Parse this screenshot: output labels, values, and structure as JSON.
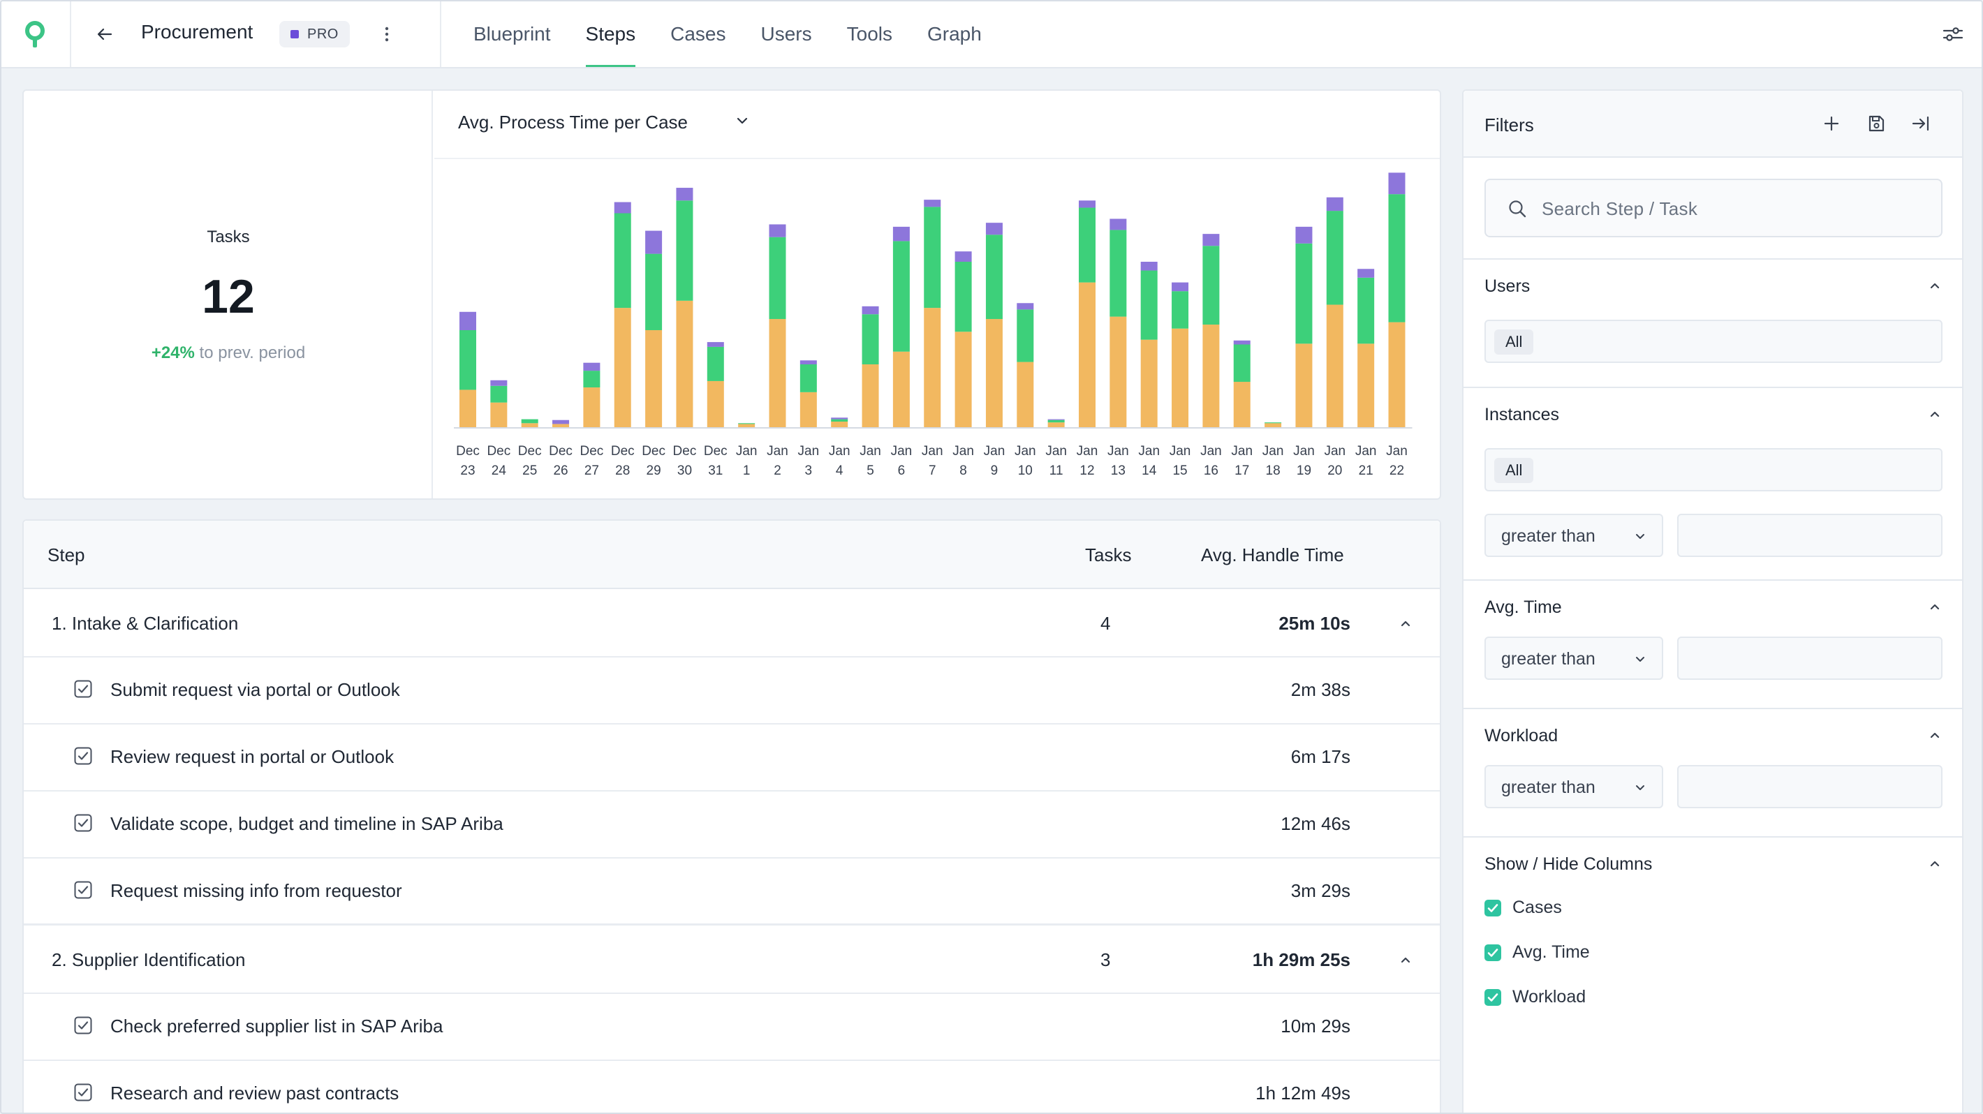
{
  "app": {
    "project_title": "Procurement",
    "plan_badge": "PRO",
    "tabs": [
      {
        "label": "Blueprint",
        "active": false
      },
      {
        "label": "Steps",
        "active": true
      },
      {
        "label": "Cases",
        "active": false
      },
      {
        "label": "Users",
        "active": false
      },
      {
        "label": "Tools",
        "active": false
      },
      {
        "label": "Graph",
        "active": false
      }
    ],
    "accent_color": "#3cc486"
  },
  "kpi": {
    "label": "Tasks",
    "value": "12",
    "delta": "+24%",
    "delta_suffix": "to prev. period"
  },
  "chart_data": {
    "type": "bar",
    "stacked": true,
    "title": "Avg. Process Time per Case",
    "categories": [
      "Dec 23",
      "Dec 24",
      "Dec 25",
      "Dec 26",
      "Dec 27",
      "Dec 28",
      "Dec 29",
      "Dec 30",
      "Dec 31",
      "Jan 1",
      "Jan 2",
      "Jan 3",
      "Jan 4",
      "Jan 5",
      "Jan 6",
      "Jan 7",
      "Jan 8",
      "Jan 9",
      "Jan 10",
      "Jan 11",
      "Jan 12",
      "Jan 13",
      "Jan 14",
      "Jan 15",
      "Jan 16",
      "Jan 17",
      "Jan 18",
      "Jan 19",
      "Jan 20",
      "Jan 21",
      "Jan 22"
    ],
    "tick_lines": [
      [
        "Dec",
        "23"
      ],
      [
        "Dec",
        "24"
      ],
      [
        "Dec",
        "25"
      ],
      [
        "Dec",
        "26"
      ],
      [
        "Dec",
        "27"
      ],
      [
        "Dec",
        "28"
      ],
      [
        "Dec",
        "29"
      ],
      [
        "Dec",
        "30"
      ],
      [
        "Dec",
        "31"
      ],
      [
        "Jan",
        "1"
      ],
      [
        "Jan",
        "2"
      ],
      [
        "Jan",
        "3"
      ],
      [
        "Jan",
        "4"
      ],
      [
        "Jan",
        "5"
      ],
      [
        "Jan",
        "6"
      ],
      [
        "Jan",
        "7"
      ],
      [
        "Jan",
        "8"
      ],
      [
        "Jan",
        "9"
      ],
      [
        "Jan",
        "10"
      ],
      [
        "Jan",
        "11"
      ],
      [
        "Jan",
        "12"
      ],
      [
        "Jan",
        "13"
      ],
      [
        "Jan",
        "14"
      ],
      [
        "Jan",
        "15"
      ],
      [
        "Jan",
        "16"
      ],
      [
        "Jan",
        "17"
      ],
      [
        "Jan",
        "18"
      ],
      [
        "Jan",
        "19"
      ],
      [
        "Jan",
        "20"
      ],
      [
        "Jan",
        "21"
      ],
      [
        "Jan",
        "22"
      ]
    ],
    "series": [
      {
        "color": "#f2b860",
        "values": [
          47,
          31,
          5,
          4,
          50,
          150,
          122,
          159,
          58,
          4,
          136,
          44,
          7,
          79,
          95,
          150,
          120,
          136,
          82,
          6,
          182,
          139,
          110,
          124,
          129,
          57,
          5,
          105,
          154,
          105,
          132
        ]
      },
      {
        "color": "#3dd07a",
        "values": [
          75,
          21,
          5,
          0,
          21,
          119,
          96,
          126,
          43,
          1,
          103,
          35,
          3,
          63,
          139,
          127,
          88,
          106,
          66,
          3,
          94,
          109,
          87,
          47,
          99,
          47,
          1,
          126,
          118,
          83,
          161
        ]
      },
      {
        "color": "#8d76db",
        "values": [
          23,
          7,
          0,
          5,
          10,
          14,
          29,
          16,
          6,
          0,
          16,
          5,
          2,
          10,
          18,
          9,
          13,
          15,
          8,
          1,
          9,
          14,
          11,
          11,
          15,
          5,
          0,
          21,
          17,
          11,
          27
        ]
      }
    ],
    "ylim": [
      0,
      330
    ],
    "grid": false,
    "legend": "none"
  },
  "table": {
    "col_step": "Step",
    "col_tasks": "Tasks",
    "col_time": "Avg. Handle Time",
    "groups": [
      {
        "name": "1. Intake & Clarification",
        "tasks": "4",
        "time": "25m 10s",
        "items": [
          {
            "name": "Submit request via portal or Outlook",
            "time": "2m 38s"
          },
          {
            "name": "Review request in portal or Outlook",
            "time": "6m 17s"
          },
          {
            "name": "Validate scope, budget and timeline in SAP Ariba",
            "time": "12m 46s"
          },
          {
            "name": "Request missing info from requestor",
            "time": "3m 29s"
          }
        ]
      },
      {
        "name": "2. Supplier Identification",
        "tasks": "3",
        "time": "1h 29m 25s",
        "items": [
          {
            "name": "Check preferred supplier list in SAP Ariba",
            "time": "10m 29s"
          },
          {
            "name": "Research and review past contracts",
            "time": "1h 12m 49s"
          }
        ]
      }
    ]
  },
  "filters": {
    "title": "Filters",
    "search_placeholder": "Search Step / Task",
    "users": {
      "title": "Users",
      "chip": "All"
    },
    "instances": {
      "title": "Instances",
      "chip": "All",
      "op": "greater than"
    },
    "avg_time": {
      "title": "Avg. Time",
      "op": "greater than"
    },
    "workload": {
      "title": "Workload",
      "op": "greater than"
    },
    "columns": {
      "title": "Show / Hide Columns",
      "items": [
        {
          "label": "Cases",
          "checked": true
        },
        {
          "label": "Avg. Time",
          "checked": true
        },
        {
          "label": "Workload",
          "checked": true
        }
      ]
    },
    "checkbox_color": "#2ec4a0"
  }
}
